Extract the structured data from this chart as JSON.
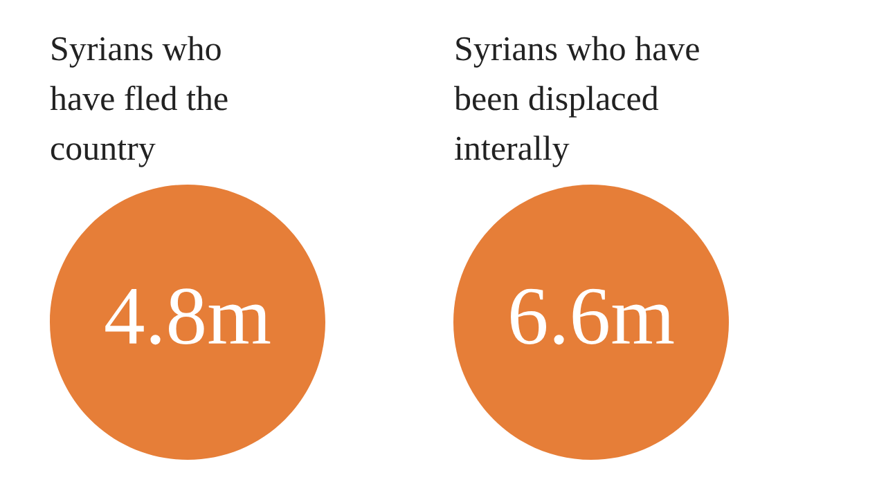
{
  "chart_data": {
    "type": "other",
    "categories": [
      "Syrians who have fled the country",
      "Syrians who have been displaced interally"
    ],
    "values": [
      4.8,
      6.6
    ],
    "value_labels": [
      "4.8m",
      "6.6m"
    ],
    "color": "#e67e38"
  }
}
